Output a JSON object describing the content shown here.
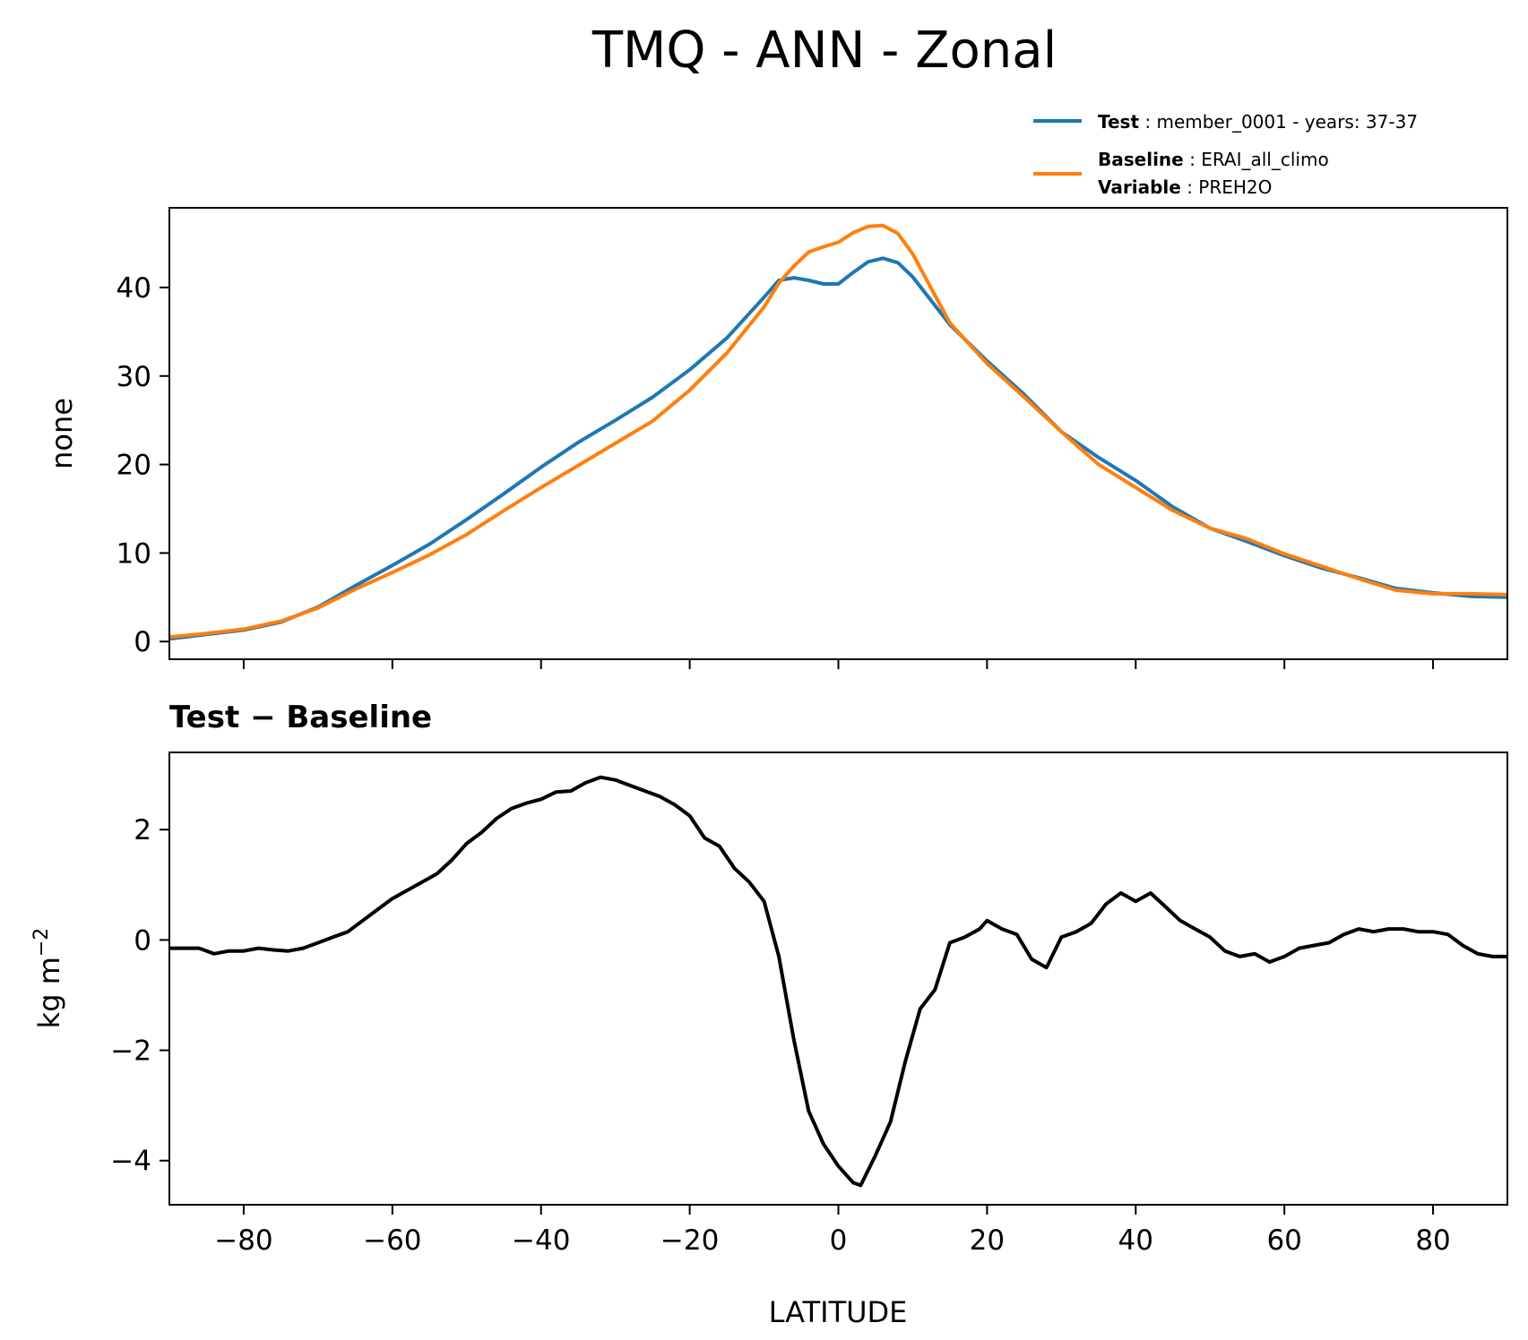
{
  "chart_data": [
    {
      "type": "line",
      "title": "TMQ - ANN - Zonal",
      "xlabel": "",
      "ylabel": "none",
      "xlim": [
        -90,
        90
      ],
      "ylim": [
        -2,
        49
      ],
      "xticks": [
        -80,
        -60,
        -40,
        -20,
        0,
        20,
        40,
        60,
        80
      ],
      "yticks": [
        0,
        10,
        20,
        30,
        40
      ],
      "legend": {
        "placement": "top-right, above axes",
        "entries": [
          {
            "name_bold": "Test",
            "text": "member_0001 - years: 37-37",
            "color": "#1f77b4"
          },
          {
            "name_bold": "Baseline",
            "text": "ERAI_all_climo",
            "color": "#ff7f0e"
          },
          {
            "name_bold": "Variable",
            "text": "PREH2O"
          }
        ]
      },
      "x": [
        -90,
        -85,
        -80,
        -75,
        -70,
        -65,
        -60,
        -55,
        -50,
        -45,
        -40,
        -35,
        -30,
        -25,
        -20,
        -15,
        -10,
        -8,
        -6,
        -4,
        -2,
        0,
        2,
        4,
        6,
        8,
        10,
        15,
        20,
        25,
        30,
        35,
        40,
        45,
        50,
        55,
        60,
        65,
        70,
        75,
        80,
        85,
        90
      ],
      "series": [
        {
          "name": "Test",
          "color": "#1f77b4",
          "values": [
            0.3,
            0.8,
            1.3,
            2.2,
            3.9,
            6.3,
            8.6,
            11.0,
            13.8,
            16.7,
            19.7,
            22.5,
            25.0,
            27.6,
            30.7,
            34.3,
            38.9,
            40.8,
            41.1,
            40.8,
            40.4,
            40.4,
            41.7,
            42.9,
            43.3,
            42.8,
            41.2,
            35.8,
            31.7,
            27.9,
            23.7,
            20.8,
            18.2,
            15.2,
            12.8,
            11.3,
            9.7,
            8.3,
            7.2,
            6.0,
            5.5,
            5.1,
            5.0
          ]
        },
        {
          "name": "Baseline",
          "color": "#ff7f0e",
          "values": [
            0.5,
            0.9,
            1.4,
            2.3,
            3.8,
            5.9,
            7.8,
            9.8,
            12.1,
            14.8,
            17.4,
            19.9,
            22.4,
            24.9,
            28.4,
            32.6,
            37.8,
            40.5,
            42.4,
            44.0,
            44.6,
            45.1,
            46.2,
            46.9,
            47.0,
            46.1,
            43.8,
            36.0,
            31.4,
            27.6,
            23.7,
            20.0,
            17.4,
            14.8,
            12.8,
            11.6,
            9.9,
            8.5,
            7.1,
            5.8,
            5.4,
            5.4,
            5.3
          ]
        }
      ]
    },
    {
      "type": "line",
      "title": "Test − Baseline",
      "xlabel": "LATITUDE",
      "ylabel": "kg m",
      "ylabel_superscript": "−2",
      "xlim": [
        -90,
        90
      ],
      "ylim": [
        -4.8,
        3.4
      ],
      "xticks": [
        -80,
        -60,
        -40,
        -20,
        0,
        20,
        40,
        60,
        80
      ],
      "xtick_labels": [
        "−80",
        "−60",
        "−40",
        "−20",
        "0",
        "20",
        "40",
        "60",
        "80"
      ],
      "yticks": [
        -4,
        -2,
        0,
        2
      ],
      "ytick_labels": [
        "−4",
        "−2",
        "0",
        "2"
      ],
      "x": [
        -90,
        -86,
        -84,
        -82,
        -80,
        -78,
        -76,
        -74,
        -72,
        -70,
        -68,
        -66,
        -64,
        -62,
        -60,
        -58,
        -56,
        -54,
        -52,
        -50,
        -48,
        -46,
        -44,
        -42,
        -40,
        -38,
        -36,
        -34,
        -32,
        -30,
        -28,
        -26,
        -24,
        -22,
        -20,
        -18,
        -16,
        -14,
        -12,
        -10,
        -8,
        -6,
        -4,
        -2,
        0,
        2,
        3,
        5,
        7,
        9,
        11,
        13,
        15,
        17,
        19,
        20,
        22,
        24,
        26,
        28,
        30,
        32,
        34,
        36,
        38,
        40,
        42,
        44,
        46,
        48,
        50,
        52,
        54,
        56,
        58,
        60,
        62,
        64,
        66,
        68,
        70,
        72,
        74,
        76,
        78,
        80,
        82,
        84,
        86,
        88,
        90
      ],
      "series": [
        {
          "name": "Test − Baseline",
          "color": "#000000",
          "values": [
            -0.15,
            -0.15,
            -0.25,
            -0.2,
            -0.2,
            -0.15,
            -0.18,
            -0.2,
            -0.15,
            -0.05,
            0.05,
            0.15,
            0.35,
            0.55,
            0.75,
            0.9,
            1.05,
            1.2,
            1.45,
            1.75,
            1.95,
            2.2,
            2.38,
            2.48,
            2.55,
            2.68,
            2.7,
            2.85,
            2.95,
            2.9,
            2.8,
            2.7,
            2.6,
            2.45,
            2.25,
            1.85,
            1.7,
            1.3,
            1.05,
            0.7,
            -0.3,
            -1.8,
            -3.1,
            -3.7,
            -4.1,
            -4.4,
            -4.45,
            -3.9,
            -3.3,
            -2.2,
            -1.25,
            -0.9,
            -0.05,
            0.05,
            0.2,
            0.35,
            0.2,
            0.1,
            -0.35,
            -0.5,
            0.05,
            0.15,
            0.3,
            0.65,
            0.85,
            0.7,
            0.85,
            0.6,
            0.35,
            0.2,
            0.05,
            -0.2,
            -0.3,
            -0.25,
            -0.4,
            -0.3,
            -0.15,
            -0.1,
            -0.05,
            0.1,
            0.2,
            0.15,
            0.2,
            0.2,
            0.15,
            0.15,
            0.1,
            -0.1,
            -0.25,
            -0.3,
            -0.3
          ]
        }
      ]
    }
  ]
}
